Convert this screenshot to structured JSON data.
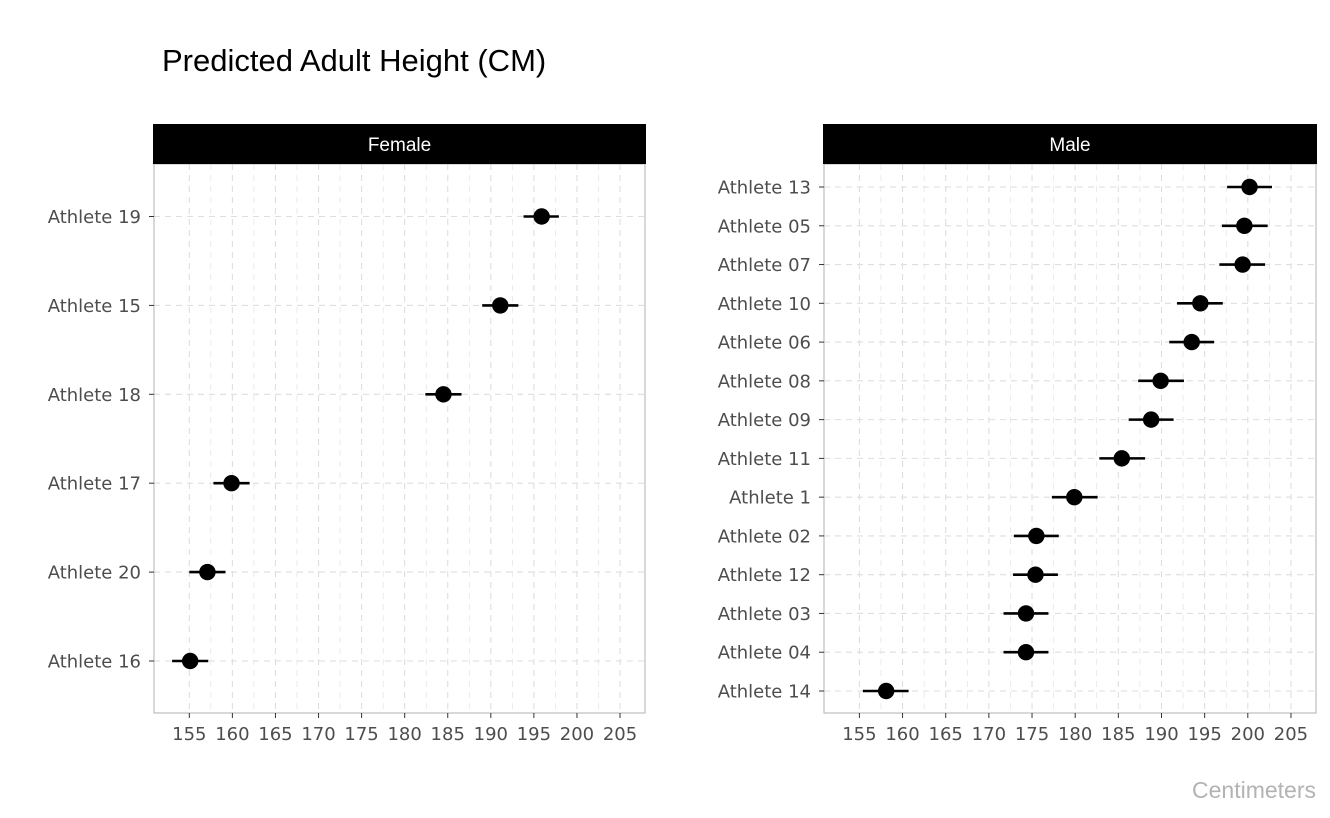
{
  "title": "Predicted Adult Height (CM)",
  "caption": "Centimeters",
  "colors": {
    "strip_background": "#000000",
    "strip_text": "#ffffff",
    "point": "#000000",
    "grid": "#dedede",
    "panel_border": "#bdbdbd",
    "tick_text": "#4d4d4d",
    "caption_text": "#b3b3b3"
  },
  "chart_data": [
    {
      "type": "scatter",
      "panel": "Female",
      "x_ticks": [
        155,
        160,
        165,
        170,
        175,
        180,
        185,
        190,
        195,
        200,
        205
      ],
      "xlim": [
        150.9,
        207.9
      ],
      "grid": "dashed",
      "error_bars": "horizontal",
      "points": [
        {
          "label": "Athlete 19",
          "x": 195.9,
          "low": 193.8,
          "high": 197.9
        },
        {
          "label": "Athlete 15",
          "x": 191.1,
          "low": 189.0,
          "high": 193.2
        },
        {
          "label": "Athlete 18",
          "x": 184.5,
          "low": 182.4,
          "high": 186.6
        },
        {
          "label": "Athlete 17",
          "x": 159.9,
          "low": 157.8,
          "high": 162.0
        },
        {
          "label": "Athlete 20",
          "x": 157.1,
          "low": 155.0,
          "high": 159.2
        },
        {
          "label": "Athlete 16",
          "x": 155.1,
          "low": 153.0,
          "high": 157.2
        }
      ]
    },
    {
      "type": "scatter",
      "panel": "Male",
      "x_ticks": [
        155,
        160,
        165,
        170,
        175,
        180,
        185,
        190,
        195,
        200,
        205
      ],
      "xlim": [
        150.9,
        207.9
      ],
      "grid": "dashed",
      "error_bars": "horizontal",
      "points": [
        {
          "label": "Athlete 13",
          "x": 200.2,
          "low": 197.6,
          "high": 202.8
        },
        {
          "label": "Athlete 05",
          "x": 199.6,
          "low": 197.0,
          "high": 202.3
        },
        {
          "label": "Athlete 07",
          "x": 199.4,
          "low": 196.7,
          "high": 202.0
        },
        {
          "label": "Athlete 10",
          "x": 194.5,
          "low": 191.8,
          "high": 197.1
        },
        {
          "label": "Athlete 06",
          "x": 193.5,
          "low": 190.9,
          "high": 196.1
        },
        {
          "label": "Athlete 08",
          "x": 189.9,
          "low": 187.3,
          "high": 192.6
        },
        {
          "label": "Athlete 09",
          "x": 188.8,
          "low": 186.2,
          "high": 191.4
        },
        {
          "label": "Athlete 11",
          "x": 185.4,
          "low": 182.8,
          "high": 188.1
        },
        {
          "label": "Athlete 1",
          "x": 179.9,
          "low": 177.3,
          "high": 182.6
        },
        {
          "label": "Athlete 02",
          "x": 175.5,
          "low": 172.9,
          "high": 178.1
        },
        {
          "label": "Athlete 12",
          "x": 175.4,
          "low": 172.8,
          "high": 178.0
        },
        {
          "label": "Athlete 03",
          "x": 174.3,
          "low": 171.7,
          "high": 176.9
        },
        {
          "label": "Athlete 04",
          "x": 174.3,
          "low": 171.7,
          "high": 176.9
        },
        {
          "label": "Athlete 14",
          "x": 158.1,
          "low": 155.4,
          "high": 160.7
        }
      ]
    }
  ]
}
